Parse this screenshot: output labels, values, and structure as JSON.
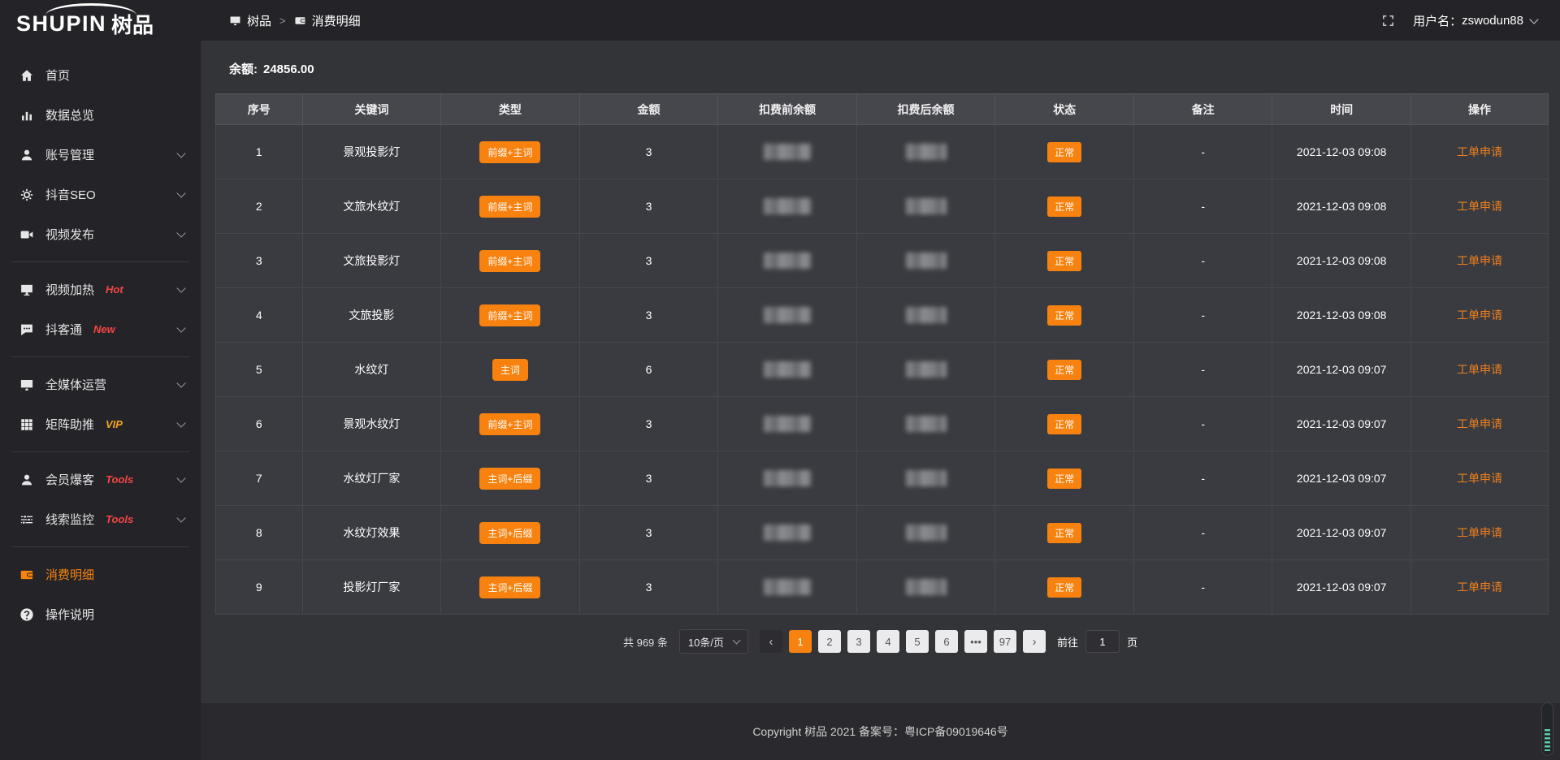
{
  "brand": {
    "name_en": "SHUPIN",
    "name_cn": "树品"
  },
  "topbar": {
    "breadcrumb": {
      "root": "树品",
      "separator": ">",
      "current": "消费明细"
    },
    "user": {
      "label": "用户名：",
      "name": "zswodun88"
    }
  },
  "sidebar": {
    "groups": [
      {
        "items": [
          {
            "label": "首页",
            "icon": "home"
          },
          {
            "label": "数据总览",
            "icon": "chart"
          },
          {
            "label": "账号管理",
            "icon": "user",
            "chevron": true
          },
          {
            "label": "抖音SEO",
            "icon": "gear",
            "chevron": true
          },
          {
            "label": "视频发布",
            "icon": "video",
            "chevron": true
          }
        ]
      },
      {
        "items": [
          {
            "label": "视频加热",
            "icon": "screen",
            "badge": "Hot",
            "badge_style": "red",
            "chevron": true
          },
          {
            "label": "抖客通",
            "icon": "chat",
            "badge": "New",
            "badge_style": "red",
            "chevron": true
          }
        ]
      },
      {
        "items": [
          {
            "label": "全媒体运营",
            "icon": "monitor",
            "chevron": true
          },
          {
            "label": "矩阵助推",
            "icon": "grid",
            "badge": "VIP",
            "badge_style": "vip",
            "chevron": true
          }
        ]
      },
      {
        "items": [
          {
            "label": "会员爆客",
            "icon": "person",
            "badge": "Tools",
            "badge_style": "red",
            "chevron": true
          },
          {
            "label": "线索监控",
            "icon": "sliders",
            "badge": "Tools",
            "badge_style": "red",
            "chevron": true
          }
        ]
      },
      {
        "items": [
          {
            "label": "消费明细",
            "icon": "wallet",
            "active": true
          },
          {
            "label": "操作说明",
            "icon": "question"
          }
        ]
      }
    ]
  },
  "balance": {
    "label": "余额:",
    "value": "24856.00"
  },
  "table": {
    "columns": [
      "序号",
      "关键词",
      "类型",
      "金额",
      "扣费前余额",
      "扣费后余额",
      "状态",
      "备注",
      "时间",
      "操作"
    ],
    "masked_columns": [
      "扣费前余额",
      "扣费后余额"
    ],
    "rows": [
      {
        "index": "1",
        "keyword": "景观投影灯",
        "type": "前缀+主词",
        "amount": "3",
        "status": "正常",
        "remark": "-",
        "time": "2021-12-03 09:08",
        "action": "工单申请"
      },
      {
        "index": "2",
        "keyword": "文旅水纹灯",
        "type": "前缀+主词",
        "amount": "3",
        "status": "正常",
        "remark": "-",
        "time": "2021-12-03 09:08",
        "action": "工单申请"
      },
      {
        "index": "3",
        "keyword": "文旅投影灯",
        "type": "前缀+主词",
        "amount": "3",
        "status": "正常",
        "remark": "-",
        "time": "2021-12-03 09:08",
        "action": "工单申请"
      },
      {
        "index": "4",
        "keyword": "文旅投影",
        "type": "前缀+主词",
        "amount": "3",
        "status": "正常",
        "remark": "-",
        "time": "2021-12-03 09:08",
        "action": "工单申请"
      },
      {
        "index": "5",
        "keyword": "水纹灯",
        "type": "主词",
        "amount": "6",
        "status": "正常",
        "remark": "-",
        "time": "2021-12-03 09:07",
        "action": "工单申请"
      },
      {
        "index": "6",
        "keyword": "景观水纹灯",
        "type": "前缀+主词",
        "amount": "3",
        "status": "正常",
        "remark": "-",
        "time": "2021-12-03 09:07",
        "action": "工单申请"
      },
      {
        "index": "7",
        "keyword": "水纹灯厂家",
        "type": "主词+后缀",
        "amount": "3",
        "status": "正常",
        "remark": "-",
        "time": "2021-12-03 09:07",
        "action": "工单申请"
      },
      {
        "index": "8",
        "keyword": "水纹灯效果",
        "type": "主词+后缀",
        "amount": "3",
        "status": "正常",
        "remark": "-",
        "time": "2021-12-03 09:07",
        "action": "工单申请"
      },
      {
        "index": "9",
        "keyword": "投影灯厂家",
        "type": "主词+后缀",
        "amount": "3",
        "status": "正常",
        "remark": "-",
        "time": "2021-12-03 09:07",
        "action": "工单申请"
      }
    ]
  },
  "pagination": {
    "total": "共 969 条",
    "page_size": "10条/页",
    "prev": "‹",
    "next": "›",
    "pages": [
      "1",
      "2",
      "3",
      "4",
      "5",
      "6",
      "•••",
      "97"
    ],
    "active": "1",
    "goto_label": "前往",
    "goto_value": "1",
    "goto_unit": "页"
  },
  "footer": {
    "copyright": "Copyright 树品 2021 备案号：粤ICP备09019646号"
  },
  "colors": {
    "accent_orange": "#f7820f",
    "link_orange": "#ee7f1d",
    "badge_red": "#f54545",
    "badge_vip": "#f7a31d",
    "sidebar_bg": "#242428",
    "content_bg": "#333438",
    "row_bg": "#3a3b40",
    "header_row_bg": "#46474c"
  }
}
